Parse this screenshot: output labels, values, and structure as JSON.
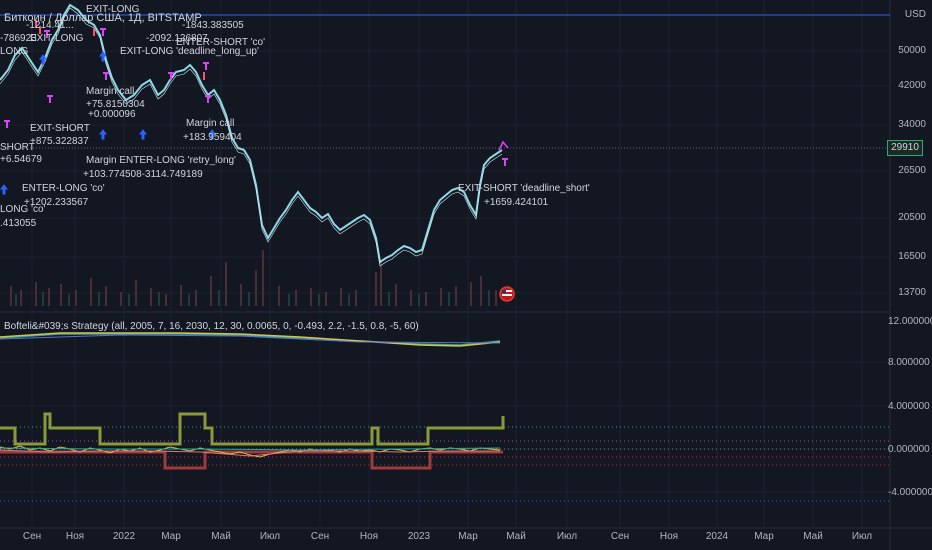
{
  "header": {
    "title": "Биткоин / Доллар США, 1Д, BITSTAMP",
    "currency": "USD"
  },
  "indicator": {
    "title": "Bofteli&#039;s Strategy (all, 2005, 7, 16, 2030, 12, 30, 0.0065, 0, -0.493, 2.2, -1.5, 0.8, -5, 60)"
  },
  "price_axis": {
    "ticks": [
      "50000",
      "42000",
      "34000",
      "26500",
      "20500",
      "16500",
      "13700"
    ],
    "last_price": "29910"
  },
  "indicator_axis": {
    "ticks": [
      "12.000000",
      "8.000000",
      "4.000000",
      "0.000000",
      "-4.000000"
    ]
  },
  "time_axis": {
    "ticks": [
      "Сен",
      "Ноя",
      "2022",
      "Мар",
      "Май",
      "Июл",
      "Сен",
      "Ноя",
      "2023",
      "Мар",
      "Май",
      "Июл",
      "Сен",
      "Ноя",
      "2024",
      "Мар",
      "Май",
      "Июл"
    ]
  },
  "trade_labels": [
    "EXIT-LONG",
    "-1214.41...",
    "EXIT-LONG",
    "-786923",
    "LONG",
    "-1843.383505",
    "-2092.126807",
    "ENTER-SHORT 'co'",
    "EXIT-LONG 'deadline_long_up'",
    "Margin call",
    "+75.8150304",
    "+0.000096",
    "EXIT-SHORT",
    "+875.322837",
    "Margin call",
    "+183.959404",
    "SHORT",
    "+6.54679",
    "Margin ENTER-LONG 'retry_long'",
    "+103.774508-3114.749189",
    "ENTER-LONG 'co'",
    "+1202.233567",
    "LONG 'co'",
    ".413055",
    "EXIT-SHORT 'deadline_short'",
    "+1659.424101"
  ],
  "colors": {
    "background": "#131722",
    "grid": "#1f2433",
    "candle": "#8fd9e6",
    "volume": "#3a2a2e",
    "horizontal_line": "#2962ff",
    "long_arrow": "#2962ff",
    "exit_marker": "#e040fb",
    "position_upper": "#8a9a3a",
    "position_lower": "#9c3d3d",
    "ma_green": "#26a69a",
    "ma_yellow": "#d4c24a"
  }
}
